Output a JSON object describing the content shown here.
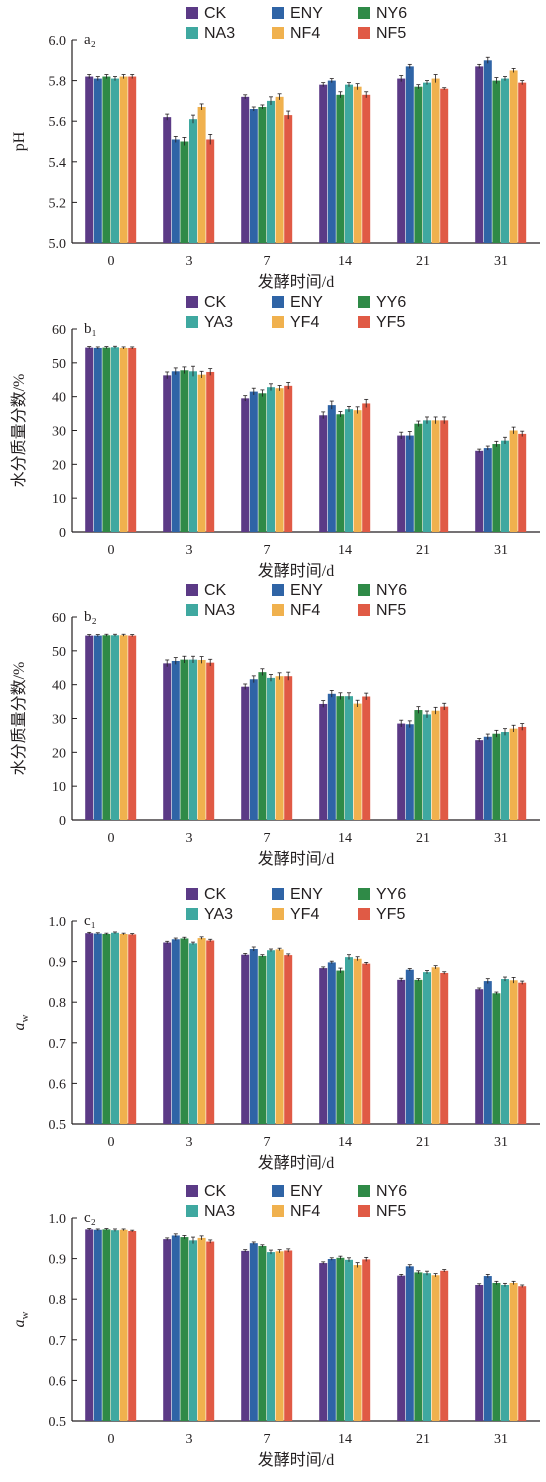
{
  "colors": {
    "CK": "#5b3a86",
    "ENY": "#2f64a6",
    "NY6": "#2f8a47",
    "NA3": "#3fa8a0",
    "NF4": "#f0b14e",
    "NF5": "#e05a45"
  },
  "chart_data": [
    {
      "type": "bar",
      "panel_label": "a₂",
      "categories": [
        "0",
        "3",
        "7",
        "14",
        "21",
        "31"
      ],
      "xlabel": "发酵时间/d",
      "ylabel": "pH",
      "ylim": [
        5.0,
        6.0
      ],
      "yticks": [
        "5.0",
        "5.2",
        "5.4",
        "5.6",
        "5.8",
        "6.0"
      ],
      "legend": [
        "CK",
        "ENY",
        "NY6",
        "NA3",
        "NF4",
        "NF5"
      ],
      "series": [
        {
          "name": "CK",
          "values": [
            5.82,
            5.62,
            5.72,
            5.78,
            5.81,
            5.87
          ],
          "err": [
            0.01,
            0.015,
            0.01,
            0.01,
            0.015,
            0.01
          ]
        },
        {
          "name": "ENY",
          "values": [
            5.81,
            5.51,
            5.66,
            5.8,
            5.87,
            5.9
          ],
          "err": [
            0.01,
            0.015,
            0.01,
            0.01,
            0.01,
            0.015
          ]
        },
        {
          "name": "NY6",
          "values": [
            5.82,
            5.5,
            5.67,
            5.73,
            5.77,
            5.8
          ],
          "err": [
            0.01,
            0.02,
            0.01,
            0.015,
            0.01,
            0.015
          ]
        },
        {
          "name": "NA3",
          "values": [
            5.81,
            5.61,
            5.7,
            5.78,
            5.79,
            5.81
          ],
          "err": [
            0.01,
            0.02,
            0.02,
            0.01,
            0.01,
            0.01
          ]
        },
        {
          "name": "NF4",
          "values": [
            5.82,
            5.67,
            5.72,
            5.77,
            5.81,
            5.85
          ],
          "err": [
            0.01,
            0.015,
            0.015,
            0.015,
            0.02,
            0.01
          ]
        },
        {
          "name": "NF5",
          "values": [
            5.82,
            5.51,
            5.63,
            5.73,
            5.76,
            5.79
          ],
          "err": [
            0.01,
            0.025,
            0.02,
            0.015,
            0.005,
            0.01
          ]
        }
      ]
    },
    {
      "type": "bar",
      "panel_label": "b₁",
      "categories": [
        "0",
        "3",
        "7",
        "14",
        "21",
        "31"
      ],
      "xlabel": "发酵时间/d",
      "ylabel": "水分质量分数/%",
      "ylim": [
        0,
        60
      ],
      "yticks": [
        "0",
        "10",
        "20",
        "30",
        "40",
        "50",
        "60"
      ],
      "legend": [
        "CK",
        "ENY",
        "YY6",
        "YA3",
        "YF4",
        "YF5"
      ],
      "series": [
        {
          "name": "CK",
          "values": [
            54.5,
            46.3,
            39.5,
            34.5,
            28.5,
            24.0
          ],
          "err": [
            0.3,
            1.0,
            0.8,
            1.0,
            1.0,
            0.5
          ]
        },
        {
          "name": "ENY",
          "values": [
            54.4,
            47.5,
            41.5,
            37.5,
            28.5,
            24.8
          ],
          "err": [
            0.3,
            1.0,
            1.0,
            1.2,
            1.2,
            0.6
          ]
        },
        {
          "name": "YY6",
          "values": [
            54.5,
            47.8,
            41.0,
            34.8,
            32.0,
            26.0
          ],
          "err": [
            0.3,
            1.0,
            1.0,
            0.8,
            0.8,
            0.8
          ]
        },
        {
          "name": "YA3",
          "values": [
            54.6,
            47.5,
            42.8,
            36.3,
            33.0,
            27.0
          ],
          "err": [
            0.3,
            1.5,
            1.0,
            0.8,
            1.0,
            1.0
          ]
        },
        {
          "name": "YF4",
          "values": [
            54.4,
            46.5,
            42.5,
            36.0,
            33.0,
            30.0
          ],
          "err": [
            0.3,
            1.0,
            0.8,
            1.0,
            1.0,
            1.0
          ]
        },
        {
          "name": "YF5",
          "values": [
            54.4,
            47.3,
            43.2,
            38.0,
            33.0,
            29.0
          ],
          "err": [
            0.3,
            1.0,
            1.0,
            1.2,
            1.0,
            0.8
          ]
        }
      ]
    },
    {
      "type": "bar",
      "panel_label": "b₂",
      "categories": [
        "0",
        "3",
        "7",
        "14",
        "21",
        "31"
      ],
      "xlabel": "发酵时间/d",
      "ylabel": "水分质量分数/%",
      "ylim": [
        0,
        60
      ],
      "yticks": [
        "0",
        "10",
        "20",
        "30",
        "40",
        "50",
        "60"
      ],
      "legend": [
        "CK",
        "ENY",
        "NY6",
        "NA3",
        "NF4",
        "NF5"
      ],
      "series": [
        {
          "name": "CK",
          "values": [
            54.5,
            46.3,
            39.4,
            34.3,
            28.5,
            23.6
          ],
          "err": [
            0.3,
            1.0,
            0.8,
            1.0,
            1.0,
            0.5
          ]
        },
        {
          "name": "ENY",
          "values": [
            54.5,
            47.0,
            41.6,
            37.3,
            28.3,
            24.6
          ],
          "err": [
            0.3,
            1.0,
            1.0,
            1.0,
            1.0,
            0.8
          ]
        },
        {
          "name": "NY6",
          "values": [
            54.6,
            47.4,
            43.7,
            36.6,
            32.5,
            25.5
          ],
          "err": [
            0.3,
            1.0,
            1.0,
            1.0,
            1.0,
            1.0
          ]
        },
        {
          "name": "NA3",
          "values": [
            54.6,
            47.4,
            42.0,
            36.6,
            31.2,
            26.0
          ],
          "err": [
            0.3,
            1.0,
            1.0,
            1.0,
            1.0,
            1.0
          ]
        },
        {
          "name": "NF4",
          "values": [
            54.6,
            47.3,
            42.5,
            34.4,
            32.3,
            27.0
          ],
          "err": [
            0.3,
            1.0,
            1.0,
            1.0,
            1.0,
            1.0
          ]
        },
        {
          "name": "NF5",
          "values": [
            54.5,
            46.5,
            42.5,
            36.5,
            33.5,
            27.5
          ],
          "err": [
            0.3,
            1.0,
            1.2,
            1.0,
            1.0,
            1.0
          ]
        }
      ]
    },
    {
      "type": "bar",
      "panel_label": "c₁",
      "categories": [
        "0",
        "3",
        "7",
        "14",
        "21",
        "31"
      ],
      "xlabel": "发酵时间/d",
      "ylabel": "a_w",
      "ylim": [
        0.5,
        1.0
      ],
      "yticks": [
        "0.5",
        "0.6",
        "0.7",
        "0.8",
        "0.9",
        "1.0"
      ],
      "legend": [
        "CK",
        "ENY",
        "YY6",
        "YA3",
        "YF4",
        "YF5"
      ],
      "series": [
        {
          "name": "CK",
          "values": [
            0.97,
            0.947,
            0.917,
            0.884,
            0.855,
            0.832
          ],
          "err": [
            0.002,
            0.003,
            0.003,
            0.003,
            0.004,
            0.003
          ]
        },
        {
          "name": "ENY",
          "values": [
            0.969,
            0.955,
            0.931,
            0.898,
            0.88,
            0.852
          ],
          "err": [
            0.002,
            0.003,
            0.005,
            0.003,
            0.003,
            0.006
          ]
        },
        {
          "name": "YY6",
          "values": [
            0.968,
            0.957,
            0.914,
            0.878,
            0.855,
            0.822
          ],
          "err": [
            0.002,
            0.003,
            0.003,
            0.006,
            0.003,
            0.003
          ]
        },
        {
          "name": "YA3",
          "values": [
            0.971,
            0.945,
            0.928,
            0.911,
            0.874,
            0.857
          ],
          "err": [
            0.002,
            0.003,
            0.003,
            0.006,
            0.004,
            0.005
          ]
        },
        {
          "name": "YF4",
          "values": [
            0.968,
            0.958,
            0.93,
            0.907,
            0.886,
            0.854
          ],
          "err": [
            0.002,
            0.003,
            0.003,
            0.005,
            0.004,
            0.007
          ]
        },
        {
          "name": "YF5",
          "values": [
            0.967,
            0.952,
            0.916,
            0.895,
            0.872,
            0.848
          ],
          "err": [
            0.002,
            0.003,
            0.003,
            0.003,
            0.003,
            0.004
          ]
        }
      ]
    },
    {
      "type": "bar",
      "panel_label": "c₂",
      "categories": [
        "0",
        "3",
        "7",
        "14",
        "21",
        "31"
      ],
      "xlabel": "发酵时间/d",
      "ylabel": "a_w",
      "ylim": [
        0.5,
        1.0
      ],
      "yticks": [
        "0.5",
        "0.6",
        "0.7",
        "0.8",
        "0.9",
        "1.0"
      ],
      "legend": [
        "CK",
        "ENY",
        "NY6",
        "NA3",
        "NF4",
        "NF5"
      ],
      "series": [
        {
          "name": "CK",
          "values": [
            0.972,
            0.948,
            0.919,
            0.889,
            0.858,
            0.835
          ],
          "err": [
            0.002,
            0.003,
            0.003,
            0.003,
            0.003,
            0.003
          ]
        },
        {
          "name": "ENY",
          "values": [
            0.971,
            0.957,
            0.938,
            0.899,
            0.881,
            0.857
          ],
          "err": [
            0.002,
            0.004,
            0.003,
            0.003,
            0.004,
            0.004
          ]
        },
        {
          "name": "NY6",
          "values": [
            0.972,
            0.953,
            0.931,
            0.902,
            0.866,
            0.84
          ],
          "err": [
            0.002,
            0.004,
            0.003,
            0.004,
            0.004,
            0.004
          ]
        },
        {
          "name": "NA3",
          "values": [
            0.97,
            0.945,
            0.916,
            0.897,
            0.864,
            0.835
          ],
          "err": [
            0.003,
            0.008,
            0.005,
            0.005,
            0.005,
            0.004
          ]
        },
        {
          "name": "NF4",
          "values": [
            0.971,
            0.951,
            0.918,
            0.884,
            0.859,
            0.84
          ],
          "err": [
            0.002,
            0.005,
            0.004,
            0.006,
            0.004,
            0.004
          ]
        },
        {
          "name": "NF5",
          "values": [
            0.968,
            0.942,
            0.92,
            0.898,
            0.87,
            0.832
          ],
          "err": [
            0.002,
            0.004,
            0.004,
            0.005,
            0.003,
            0.003
          ]
        }
      ]
    }
  ]
}
